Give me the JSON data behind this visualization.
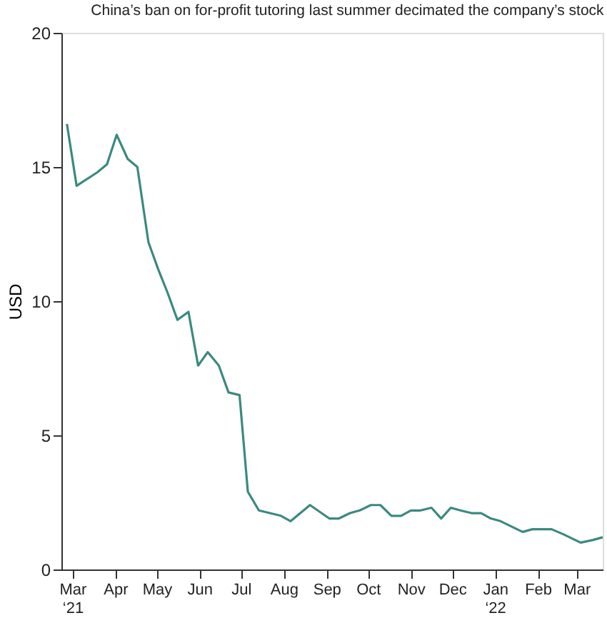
{
  "chart_data": {
    "type": "line",
    "title": "China’s ban on for-profit tutoring last summer decimated the company’s stock",
    "ylabel": "USD",
    "x": [
      "2021-02-25",
      "2021-03-04",
      "2021-03-19",
      "2021-03-26",
      "2021-04-02",
      "2021-04-10",
      "2021-04-17",
      "2021-04-25",
      "2021-05-02",
      "2021-05-09",
      "2021-05-16",
      "2021-05-24",
      "2021-05-31",
      "2021-06-07",
      "2021-06-15",
      "2021-06-22",
      "2021-06-30",
      "2021-07-06",
      "2021-07-14",
      "2021-07-22",
      "2021-07-30",
      "2021-08-06",
      "2021-08-20",
      "2021-09-03",
      "2021-09-10",
      "2021-09-18",
      "2021-09-25",
      "2021-10-03",
      "2021-10-10",
      "2021-10-18",
      "2021-10-25",
      "2021-11-01",
      "2021-11-08",
      "2021-11-16",
      "2021-11-23",
      "2021-11-30",
      "2021-12-07",
      "2021-12-15",
      "2021-12-22",
      "2021-12-29",
      "2022-01-05",
      "2022-01-13",
      "2022-01-21",
      "2022-01-28",
      "2022-02-05",
      "2022-02-11",
      "2022-02-20",
      "2022-03-04",
      "2022-03-13",
      "2022-03-20"
    ],
    "series": [
      {
        "color": "#3a8a80",
        "values": [
          16.6,
          14.3,
          14.8,
          15.1,
          16.2,
          15.3,
          15.0,
          12.2,
          11.2,
          10.3,
          9.3,
          9.6,
          7.6,
          8.1,
          7.6,
          6.6,
          6.5,
          2.9,
          2.2,
          2.1,
          2.0,
          1.8,
          2.4,
          1.9,
          1.9,
          2.1,
          2.2,
          2.4,
          2.4,
          2.0,
          2.0,
          2.2,
          2.2,
          2.3,
          1.9,
          2.3,
          2.2,
          2.1,
          2.1,
          1.9,
          1.8,
          1.6,
          1.4,
          1.5,
          1.5,
          1.5,
          1.3,
          1.0,
          1.1,
          1.2
        ]
      }
    ],
    "xlim": [
      "2021-02-21",
      "2022-03-20"
    ],
    "xticks": [
      {
        "value": "2021-03-01",
        "label": "Mar\n‘21"
      },
      {
        "value": "2021-04-01",
        "label": "Apr"
      },
      {
        "value": "2021-05-01",
        "label": "May"
      },
      {
        "value": "2021-06-01",
        "label": "Jun"
      },
      {
        "value": "2021-07-01",
        "label": "Jul"
      },
      {
        "value": "2021-08-01",
        "label": "Aug"
      },
      {
        "value": "2021-09-01",
        "label": "Sep"
      },
      {
        "value": "2021-10-01",
        "label": "Oct"
      },
      {
        "value": "2021-11-01",
        "label": "Nov"
      },
      {
        "value": "2021-12-01",
        "label": "Dec"
      },
      {
        "value": "2022-01-01",
        "label": "Jan\n‘22"
      },
      {
        "value": "2022-02-01",
        "label": "Feb"
      },
      {
        "value": "2022-03-01",
        "label": "Mar"
      }
    ],
    "ylim": [
      0,
      20
    ],
    "yticks": [
      0,
      5,
      10,
      15,
      20
    ],
    "grid": false,
    "marker": "none",
    "line_style": "solid"
  }
}
